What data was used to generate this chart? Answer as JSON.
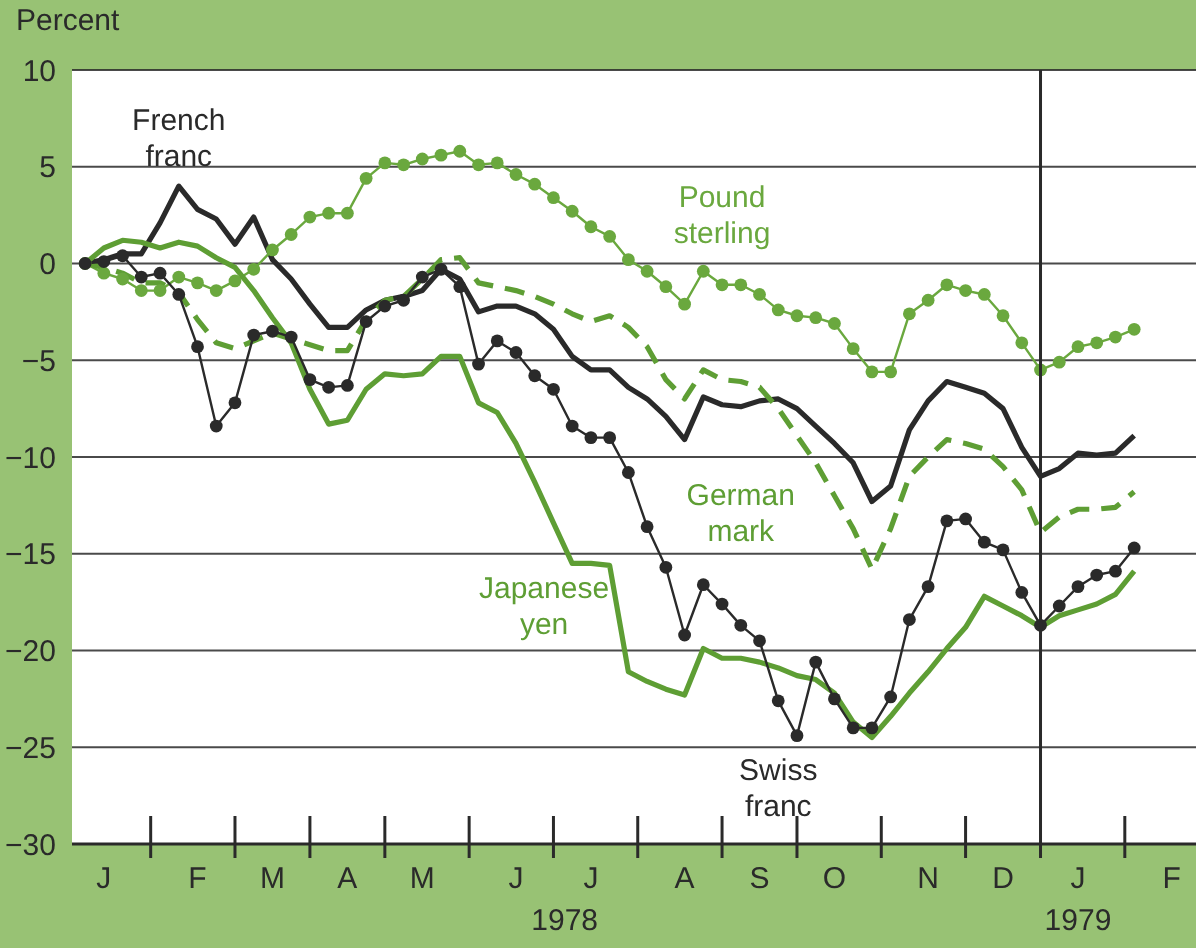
{
  "chart_data": {
    "type": "line",
    "ylabel": "Percent",
    "categories": [
      null,
      "J",
      null,
      null,
      null,
      null,
      "F",
      null,
      null,
      null,
      "M",
      null,
      null,
      null,
      "A",
      null,
      null,
      null,
      "M",
      null,
      null,
      null,
      null,
      "J",
      null,
      null,
      null,
      "J",
      null,
      null,
      null,
      null,
      "A",
      null,
      null,
      null,
      "S",
      null,
      null,
      null,
      "O",
      null,
      null,
      null,
      null,
      "N",
      null,
      null,
      null,
      "D",
      null,
      null,
      null,
      "J",
      null,
      null,
      null,
      null,
      "F",
      null
    ],
    "series": [
      {
        "name": "French franc",
        "color": "#2a2a2a",
        "line_style": "solid",
        "marker": "none",
        "values": [
          0,
          0.2,
          0.5,
          0.5,
          2.1,
          4.0,
          2.8,
          2.3,
          1.0,
          2.4,
          0.2,
          -0.8,
          -2.1,
          -3.3,
          -3.3,
          -2.4,
          -1.9,
          -1.7,
          -1.4,
          -0.3,
          -0.8,
          -2.5,
          -2.2,
          -2.2,
          -2.6,
          -3.4,
          -4.8,
          -5.5,
          -5.5,
          -6.4,
          -7.0,
          -7.9,
          -9.1,
          -6.9,
          -7.3,
          -7.4,
          -7.1,
          -7.0,
          -7.5,
          -8.4,
          -9.3,
          -10.3,
          -12.3,
          -11.5,
          -8.6,
          -7.1,
          -6.1,
          -6.4,
          -6.7,
          -7.5,
          -9.5,
          -11.0,
          -10.6,
          -9.8,
          -9.9,
          -9.8,
          -8.9,
          null,
          null,
          null
        ]
      },
      {
        "name": "Pound sterling",
        "color": "#6aa83e",
        "line_style": "solid",
        "marker": "circle",
        "values": [
          0,
          -0.5,
          -0.8,
          -1.4,
          -1.4,
          -0.7,
          -1.0,
          -1.4,
          -0.9,
          -0.3,
          0.7,
          1.5,
          2.4,
          2.6,
          2.6,
          4.4,
          5.2,
          5.1,
          5.4,
          5.6,
          5.8,
          5.1,
          5.2,
          4.6,
          4.1,
          3.4,
          2.7,
          1.9,
          1.4,
          0.2,
          -0.4,
          -1.2,
          -2.1,
          -0.4,
          -1.1,
          -1.1,
          -1.6,
          -2.4,
          -2.7,
          -2.8,
          -3.1,
          -4.4,
          -5.6,
          -5.6,
          -2.6,
          -1.9,
          -1.1,
          -1.4,
          -1.6,
          -2.7,
          -4.1,
          -5.5,
          -5.1,
          -4.3,
          -4.1,
          -3.8,
          -3.4,
          null,
          null,
          null
        ]
      },
      {
        "name": "German mark",
        "color": "#5e9e34",
        "line_style": "dashed",
        "marker": "none",
        "values": [
          0,
          -0.2,
          -0.5,
          -1.0,
          -1.0,
          -1.5,
          -2.9,
          -4.1,
          -4.4,
          -4.0,
          -3.6,
          -3.9,
          -4.2,
          -4.5,
          -4.5,
          -2.9,
          -1.9,
          -1.7,
          -0.8,
          0.2,
          0.3,
          -1.0,
          -1.2,
          -1.4,
          -1.7,
          -2.1,
          -2.6,
          -3.0,
          -2.7,
          -3.3,
          -4.3,
          -6.0,
          -7.0,
          -5.5,
          -6.0,
          -6.1,
          -6.4,
          -7.5,
          -8.9,
          -10.3,
          -12.0,
          -13.7,
          -15.8,
          -13.7,
          -11.0,
          -10.0,
          -9.1,
          -9.3,
          -9.6,
          -10.5,
          -11.7,
          -13.9,
          -13.1,
          -12.7,
          -12.7,
          -12.6,
          -11.8,
          null,
          null,
          null
        ]
      },
      {
        "name": "Japanese yen",
        "color": "#5e9e34",
        "line_style": "solid",
        "marker": "none",
        "values": [
          0,
          0.8,
          1.2,
          1.1,
          0.8,
          1.1,
          0.9,
          0.3,
          -0.2,
          -1.4,
          -2.8,
          -4.1,
          -6.5,
          -8.3,
          -8.1,
          -6.5,
          -5.7,
          -5.8,
          -5.7,
          -4.8,
          -4.8,
          -7.2,
          -7.7,
          -9.3,
          -11.3,
          -13.4,
          -15.5,
          -15.5,
          -15.6,
          -21.1,
          -21.6,
          -22.0,
          -22.3,
          -19.9,
          -20.4,
          -20.4,
          -20.6,
          -20.9,
          -21.3,
          -21.5,
          -22.2,
          -23.7,
          -24.5,
          -23.4,
          -22.2,
          -21.1,
          -19.9,
          -18.8,
          -17.2,
          -17.7,
          -18.2,
          -18.8,
          -18.2,
          -17.9,
          -17.6,
          -17.1,
          -15.9,
          null,
          null,
          null
        ]
      },
      {
        "name": "Swiss franc",
        "color": "#2a2a2a",
        "line_style": "solid",
        "marker": "circle",
        "values": [
          0,
          0.1,
          0.4,
          -0.7,
          -0.5,
          -1.6,
          -4.3,
          -8.4,
          -7.2,
          -3.7,
          -3.5,
          -3.8,
          -6.0,
          -6.4,
          -6.3,
          -3.0,
          -2.2,
          -1.9,
          -0.7,
          -0.3,
          -1.2,
          -5.2,
          -4.0,
          -4.6,
          -5.8,
          -6.5,
          -8.4,
          -9.0,
          -9.0,
          -10.8,
          -13.6,
          -15.7,
          -19.2,
          -16.6,
          -17.6,
          -18.7,
          -19.5,
          -22.6,
          -24.4,
          -20.6,
          -22.5,
          -24.0,
          -24.0,
          -22.4,
          -18.4,
          -16.7,
          -13.3,
          -13.2,
          -14.4,
          -14.8,
          -17.0,
          -18.7,
          -17.7,
          -16.7,
          -16.1,
          -15.9,
          -14.7,
          null,
          null,
          null
        ]
      }
    ],
    "ylim": [
      -30,
      10
    ],
    "yticks": [
      -30,
      -25,
      -20,
      -15,
      -10,
      -5,
      0,
      5,
      10
    ],
    "grid": "y",
    "annotations": [
      "1978",
      "1979"
    ]
  }
}
